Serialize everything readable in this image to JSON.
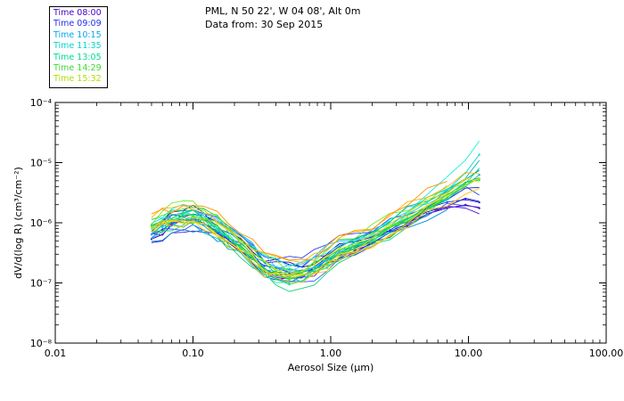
{
  "window": {
    "background": "#ffffff"
  },
  "chart_data": {
    "type": "line",
    "title": "PML, N 50 22', W 04 08', Alt 0m",
    "subtitle": "Data from: 30 Sep 2015",
    "xlabel": "Aerosol Size (μm)",
    "ylabel": "dV/d(log R) (cm³/cm⁻²)",
    "x_scale": "log",
    "y_scale": "log",
    "xlim": [
      0.01,
      100.0
    ],
    "ylim": [
      1e-08,
      0.0001
    ],
    "x_ticks": [
      0.01,
      0.1,
      1.0,
      10.0,
      100.0
    ],
    "x_tick_labels": [
      "0.01",
      "0.10",
      "1.00",
      "10.00",
      "100.00"
    ],
    "y_ticks": [
      1e-08,
      1e-07,
      1e-06,
      1e-05,
      0.0001
    ],
    "y_tick_labels": [
      "10⁻⁸",
      "10⁻⁷",
      "10⁻⁶",
      "10⁻⁵",
      "10⁻⁴"
    ],
    "grid": false,
    "legend_position": "top-left",
    "x": [
      0.05,
      0.06,
      0.07,
      0.085,
      0.1,
      0.12,
      0.15,
      0.18,
      0.22,
      0.27,
      0.33,
      0.4,
      0.5,
      0.62,
      0.76,
      0.94,
      1.15,
      1.5,
      2.0,
      2.7,
      3.6,
      5.0,
      7.0,
      9.5,
      12.0
    ],
    "series": [
      {
        "name": "Time 08:00",
        "legend_color": "#4400c8",
        "colors": [
          "#3500b8",
          "#4a10d0",
          "#2a00a0",
          "#5a20e0"
        ],
        "values": [
          6e-07,
          7.5e-07,
          9e-07,
          1.05e-06,
          1.1e-06,
          9.5e-07,
          7e-07,
          5e-07,
          3.4e-07,
          2.4e-07,
          1.8e-07,
          1.5e-07,
          1.4e-07,
          1.5e-07,
          1.8e-07,
          2.2e-07,
          2.8e-07,
          3.6e-07,
          4.8e-07,
          6.5e-07,
          9e-07,
          1.3e-06,
          1.8e-06,
          2.2e-06,
          2e-06
        ]
      },
      {
        "name": "Time 09:09",
        "legend_color": "#2030ee",
        "colors": [
          "#1c2ce6",
          "#2840f0",
          "#1020cc",
          "#3050ff"
        ],
        "values": [
          6.5e-07,
          8e-07,
          9.5e-07,
          1.1e-06,
          1.15e-06,
          1e-06,
          7.5e-07,
          5.5e-07,
          3.8e-07,
          2.6e-07,
          1.9e-07,
          1.6e-07,
          1.5e-07,
          1.6e-07,
          1.9e-07,
          2.4e-07,
          3.1e-07,
          4e-07,
          5.5e-07,
          7.5e-07,
          1.05e-06,
          1.5e-06,
          2.1e-06,
          2.6e-06,
          2.4e-06
        ]
      },
      {
        "name": "Time 10:15",
        "legend_color": "#00a8f0",
        "colors": [
          "#00a2ee",
          "#18b6ff",
          "#008cd8",
          "#2ec2ff"
        ],
        "values": [
          7e-07,
          8.5e-07,
          1e-06,
          1.15e-06,
          1.2e-06,
          1.05e-06,
          8e-07,
          6e-07,
          4.2e-07,
          2.9e-07,
          2.1e-07,
          1.7e-07,
          1.5e-07,
          1.6e-07,
          2e-07,
          2.6e-07,
          3.4e-07,
          4.5e-07,
          6.2e-07,
          8.5e-07,
          1.2e-06,
          1.8e-06,
          2.8e-06,
          4.5e-06,
          6e-06
        ]
      },
      {
        "name": "Time 11:35",
        "legend_color": "#00d8cc",
        "colors": [
          "#00d8cc",
          "#00c4bc",
          "#1ceede",
          "#00b0aa"
        ],
        "values": [
          7.5e-07,
          9e-07,
          1.05e-06,
          1.2e-06,
          1.25e-06,
          1.1e-06,
          8.5e-07,
          6e-07,
          4e-07,
          2.7e-07,
          1.9e-07,
          1.5e-07,
          1.35e-07,
          1.45e-07,
          1.8e-07,
          2.4e-07,
          3.3e-07,
          4.6e-07,
          6.5e-07,
          9.5e-07,
          1.4e-06,
          2.2e-06,
          3.8e-06,
          7e-06,
          1.3e-05
        ]
      },
      {
        "name": "Time 13:05",
        "legend_color": "#00dc8a",
        "colors": [
          "#00dc8a",
          "#0ecf7c",
          "#26efa2",
          "#00c272"
        ],
        "values": [
          8e-07,
          9.5e-07,
          1.1e-06,
          1.25e-06,
          1.3e-06,
          1.1e-06,
          8e-07,
          5.5e-07,
          3.6e-07,
          2.4e-07,
          1.6e-07,
          1.2e-07,
          1.05e-07,
          1.1e-07,
          1.4e-07,
          1.9e-07,
          2.7e-07,
          3.8e-07,
          5.5e-07,
          8e-07,
          1.2e-06,
          1.9e-06,
          3e-06,
          4.5e-06,
          5.5e-06
        ]
      },
      {
        "name": "Time 14:29",
        "legend_color": "#3cda2e",
        "colors": [
          "#3cda2e",
          "#52e520",
          "#2ac62a",
          "#6eea30"
        ],
        "values": [
          8.5e-07,
          1e-06,
          1.15e-06,
          1.3e-06,
          1.35e-06,
          1.15e-06,
          8.5e-07,
          6e-07,
          4e-07,
          2.7e-07,
          1.85e-07,
          1.4e-07,
          1.25e-07,
          1.35e-07,
          1.65e-07,
          2.15e-07,
          2.95e-07,
          4.1e-07,
          5.8e-07,
          8.2e-07,
          1.2e-06,
          1.95e-06,
          3.1e-06,
          4.7e-06,
          5.6e-06
        ]
      },
      {
        "name": "Time 15:32",
        "legend_color": "#b2dc00",
        "colors": [
          "#c6e600",
          "#ffd400",
          "#ffb200",
          "#ff9000",
          "#f0d000",
          "#ffc400"
        ],
        "values": [
          9e-07,
          1.05e-06,
          1.2e-06,
          1.35e-06,
          1.4e-06,
          1.2e-06,
          9e-07,
          6.5e-07,
          4.4e-07,
          3e-07,
          2.1e-07,
          1.65e-07,
          1.5e-07,
          1.6e-07,
          1.9e-07,
          2.5e-07,
          3.3e-07,
          4.5e-07,
          6.3e-07,
          8.8e-07,
          1.3e-06,
          2.05e-06,
          3.2e-06,
          4.9e-06,
          5.4e-06
        ]
      }
    ]
  }
}
